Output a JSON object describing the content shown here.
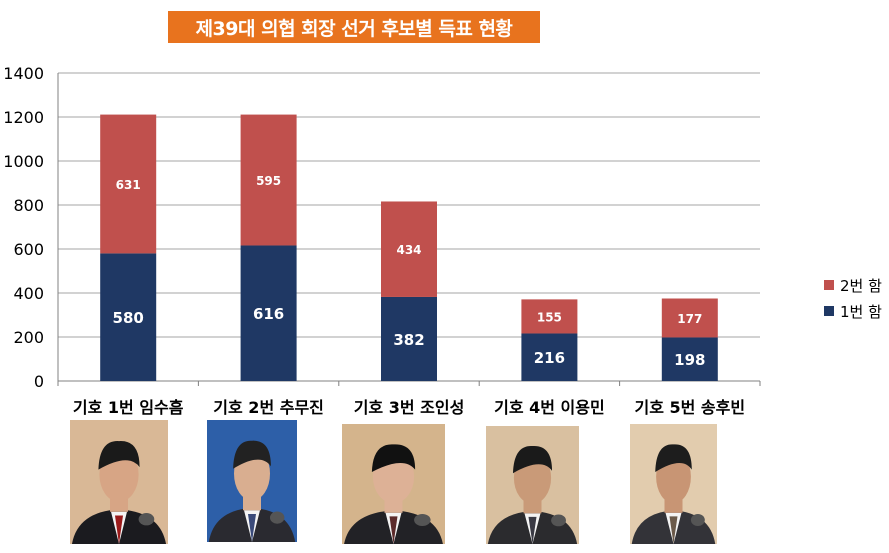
{
  "title": "제39대 의협 회장 선거 후보별 득표 현황",
  "colors": {
    "title_bg": "#E8731E",
    "round1": "#1F3864",
    "round2": "#C0504D",
    "grid": "#A6A6A6",
    "axis": "#808080"
  },
  "legend": {
    "round2_label": "2번 함",
    "round1_label": "1번 함"
  },
  "photos": [
    {
      "candidate": "기호 1번 임수흠",
      "background": "#D9B896",
      "suit": "#1B1B1F",
      "tie": "#9B1B1B",
      "hair": "#1a1a1a",
      "skin": "#D7A585"
    },
    {
      "candidate": "기호 2번 추무진",
      "background": "#2D5FA8",
      "suit": "#2A2A30",
      "tie": "#3A4A7A",
      "hair": "#222222",
      "skin": "#D9AE90"
    },
    {
      "candidate": "기호 3번 조인성",
      "background": "#D4B48C",
      "suit": "#222226",
      "tie": "#5C2B2B",
      "hair": "#111111",
      "skin": "#DDB196"
    },
    {
      "candidate": "기호 4번 이용민",
      "background": "#D9C0A0",
      "suit": "#2B2B2E",
      "tie": "#3A3A44",
      "hair": "#1a1a1a",
      "skin": "#C99A78"
    },
    {
      "candidate": "기호 5번 송후빈",
      "background": "#E2CCAE",
      "suit": "#333338",
      "tie": "#6B5A4A",
      "hair": "#1d1d1d",
      "skin": "#C89574"
    }
  ],
  "chart_data": {
    "type": "bar",
    "stacked": true,
    "title": "제39대 의협 회장 선거 후보별 득표 현황",
    "xlabel": "",
    "ylabel": "",
    "categories": [
      "기호 1번 임수흠",
      "기호 2번 추무진",
      "기호 3번 조인성",
      "기호 4번 이용민",
      "기호 5번 송후빈"
    ],
    "series": [
      {
        "name": "1번 함",
        "color": "#1F3864",
        "values": [
          580,
          616,
          382,
          216,
          198
        ]
      },
      {
        "name": "2번 함",
        "color": "#C0504D",
        "values": [
          631,
          595,
          434,
          155,
          177
        ]
      }
    ],
    "ylim": [
      0,
      1400
    ],
    "yticks": [
      0,
      200,
      400,
      600,
      800,
      1000,
      1200,
      1400
    ],
    "grid": true,
    "legend_position": "right"
  }
}
